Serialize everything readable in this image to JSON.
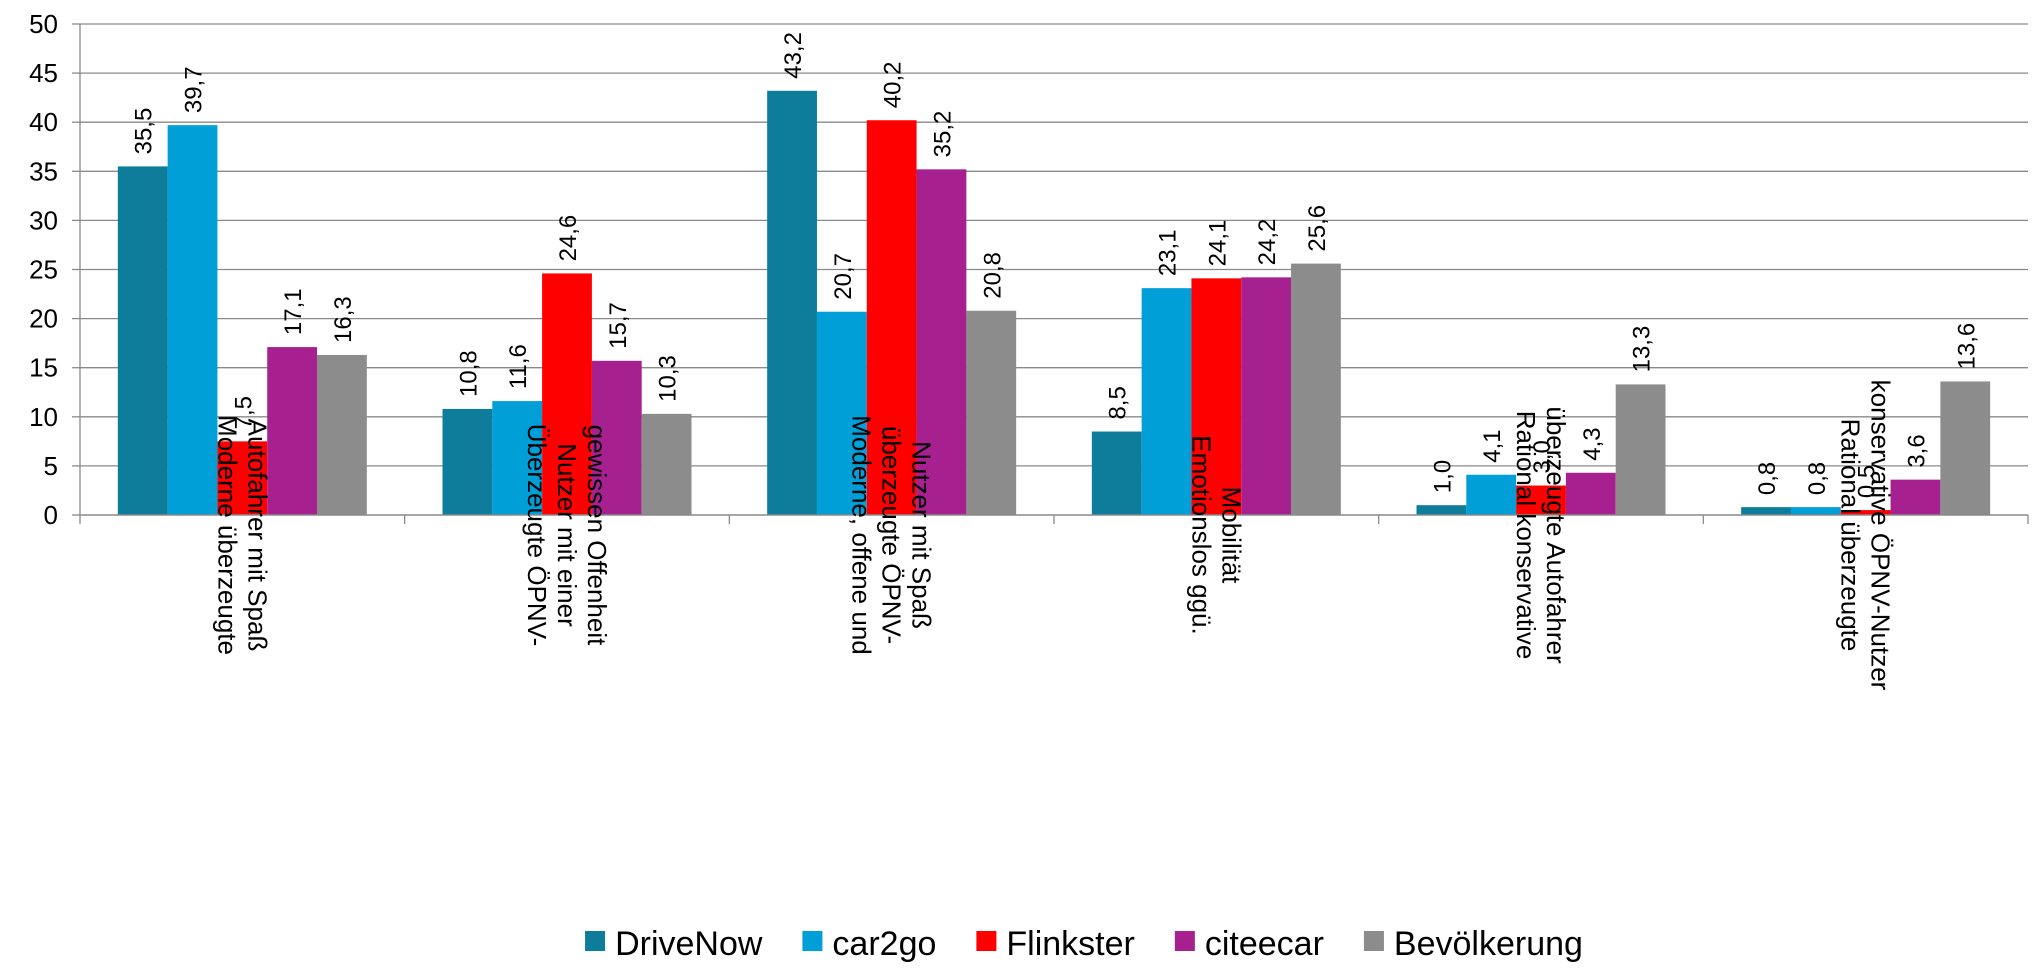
{
  "chart_data": {
    "type": "bar",
    "title": "",
    "xlabel": "",
    "ylabel": "",
    "ylim": [
      0,
      50
    ],
    "yticks": [
      "0",
      "5",
      "10",
      "15",
      "20",
      "25",
      "30",
      "35",
      "40",
      "45",
      "50"
    ],
    "grid": true,
    "legend_position": "bottom",
    "categories": [
      [
        "Moderne überzeugte",
        "Autofahrer mit Spaß"
      ],
      [
        "Überzeugte ÖPNV-",
        "Nutzer mit einer",
        "gewissen Offenheit"
      ],
      [
        "Moderne, offene und",
        "überzeugte ÖPNV-",
        "Nutzer mit Spaß"
      ],
      [
        "Emotionslos ggü.",
        "Mobilität"
      ],
      [
        "Rational konservative",
        "überzeugte Autofahrer"
      ],
      [
        "Rational überzeugte",
        "konservative ÖPNV-Nutzer"
      ]
    ],
    "series": [
      {
        "name": "DriveNow",
        "color": "#0E7C9B",
        "values": [
          35.5,
          10.8,
          43.2,
          8.5,
          1.0,
          0.8
        ],
        "labels": [
          "35,5",
          "10,8",
          "43,2",
          "8,5",
          "1,0",
          "0,8"
        ]
      },
      {
        "name": "car2go",
        "color": "#009FD8",
        "values": [
          39.7,
          11.6,
          20.7,
          23.1,
          4.1,
          0.8
        ],
        "labels": [
          "39,7",
          "11,6",
          "20,7",
          "23,1",
          "4,1",
          "0,8"
        ]
      },
      {
        "name": "Flinkster",
        "color": "#FF0000",
        "values": [
          7.5,
          24.6,
          40.2,
          24.1,
          3.0,
          0.5
        ],
        "labels": [
          "7,5",
          "24,6",
          "40,2",
          "24,1",
          "3,0",
          "0,5"
        ]
      },
      {
        "name": "citeecar",
        "color": "#A6218F",
        "values": [
          17.1,
          15.7,
          35.2,
          24.2,
          4.3,
          3.6
        ],
        "labels": [
          "17,1",
          "15,7",
          "35,2",
          "24,2",
          "4,3",
          "3,6"
        ]
      },
      {
        "name": "Bevölkerung",
        "color": "#8C8C8C",
        "values": [
          16.3,
          10.3,
          20.8,
          25.6,
          13.3,
          13.6
        ],
        "labels": [
          "16,3",
          "10,3",
          "20,8",
          "25,6",
          "13,3",
          "13,6"
        ]
      }
    ]
  }
}
